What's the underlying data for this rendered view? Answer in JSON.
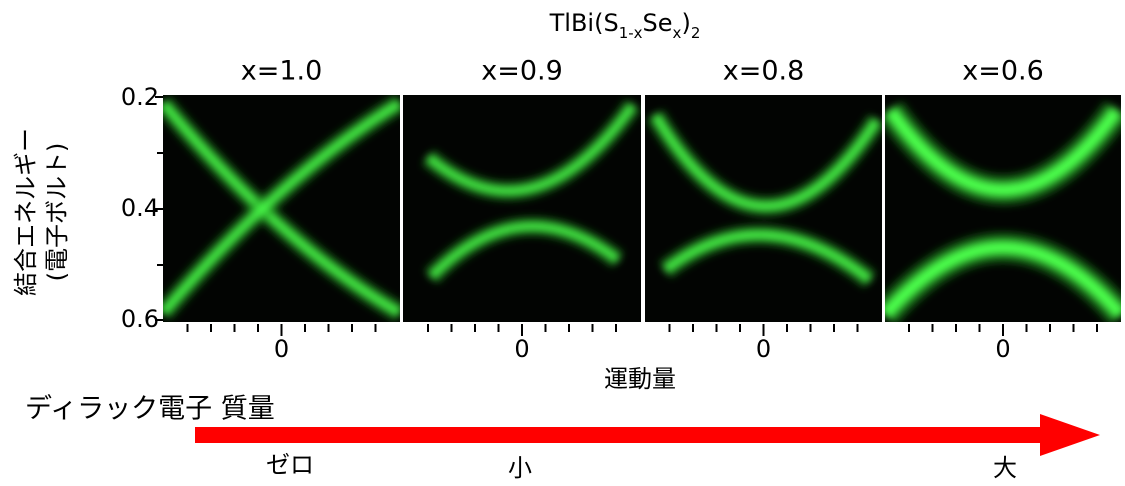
{
  "title": {
    "base": "TlBi(S",
    "sub1": "1-x",
    "mid": "Se",
    "sub2": "x",
    "close": ")",
    "sub3": "2"
  },
  "panels": [
    {
      "label": "x=1.0",
      "x_tick": "0"
    },
    {
      "label": "x=0.9",
      "x_tick": "0"
    },
    {
      "label": "x=0.8",
      "x_tick": "0"
    },
    {
      "label": "x=0.6",
      "x_tick": "0"
    }
  ],
  "y_axis": {
    "label_lines": [
      "結合エネルギー",
      "(電子ボルト)"
    ],
    "ticks": [
      "0.2",
      "0.4",
      "0.6"
    ]
  },
  "x_axis": {
    "label": "運動量"
  },
  "mass_arrow": {
    "label": "ディラック電子 質量",
    "marks": [
      "ゼロ",
      "小",
      "大"
    ]
  }
}
